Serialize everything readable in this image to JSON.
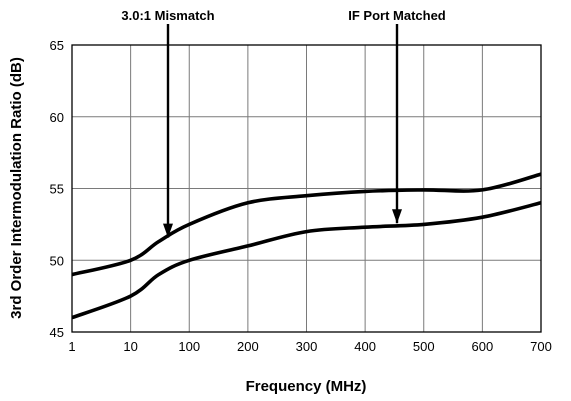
{
  "chart_data": {
    "type": "line",
    "title": "",
    "xlabel": "Frequency (MHz)",
    "ylabel": "3rd Order Intermodulation Ratio (dB)",
    "x_ticks": [
      "1",
      "10",
      "100",
      "200",
      "300",
      "400",
      "500",
      "600",
      "700"
    ],
    "y_ticks": [
      "45",
      "50",
      "55",
      "60",
      "65"
    ],
    "ylim": [
      45,
      65
    ],
    "grid": true,
    "series": [
      {
        "name": "",
        "x": [
          "1",
          "10",
          "30",
          "100",
          "200",
          "300",
          "400",
          "500",
          "600",
          "700"
        ],
        "y": [
          49.0,
          50.0,
          51.3,
          52.5,
          54.0,
          54.5,
          54.8,
          54.9,
          54.9,
          56.0
        ]
      },
      {
        "name": "",
        "x": [
          "1",
          "10",
          "30",
          "100",
          "200",
          "300",
          "400",
          "500",
          "600",
          "700"
        ],
        "y": [
          46.0,
          47.5,
          49.0,
          50.0,
          51.0,
          52.0,
          52.3,
          52.5,
          53.0,
          54.0
        ]
      }
    ],
    "annotations": [
      {
        "text": "3.0:1 Mismatch",
        "target_series": 0,
        "target_x": "30"
      },
      {
        "text": "IF Port Matched",
        "target_series": 1,
        "target_x": "400"
      }
    ]
  }
}
